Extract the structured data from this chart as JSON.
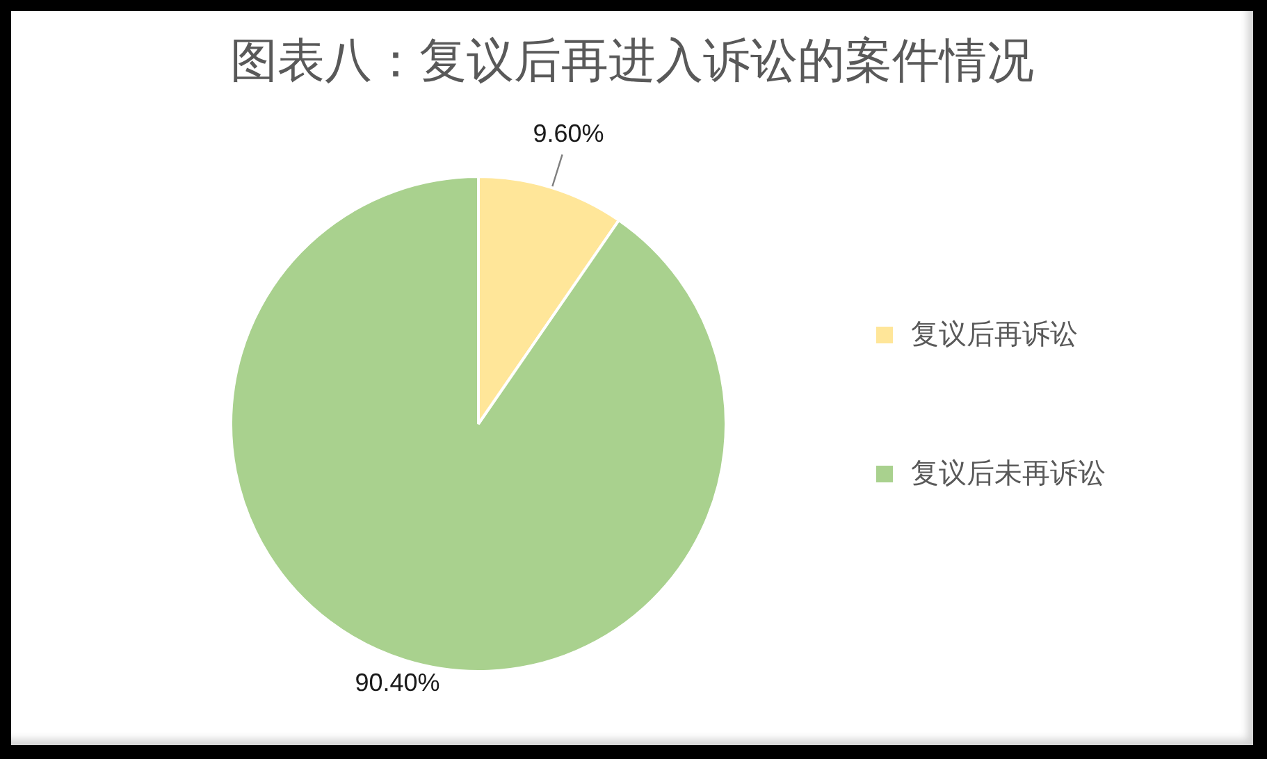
{
  "chart_data": {
    "type": "pie",
    "title": "图表八：复议后再进入诉讼的案件情况",
    "categories": [
      "复议后再诉讼",
      "复议后未再诉讼"
    ],
    "values": [
      9.6,
      90.4
    ],
    "colors": [
      "#ffe699",
      "#a9d18e"
    ],
    "value_labels": [
      "9.60%",
      "90.40%"
    ],
    "legend": "right"
  }
}
